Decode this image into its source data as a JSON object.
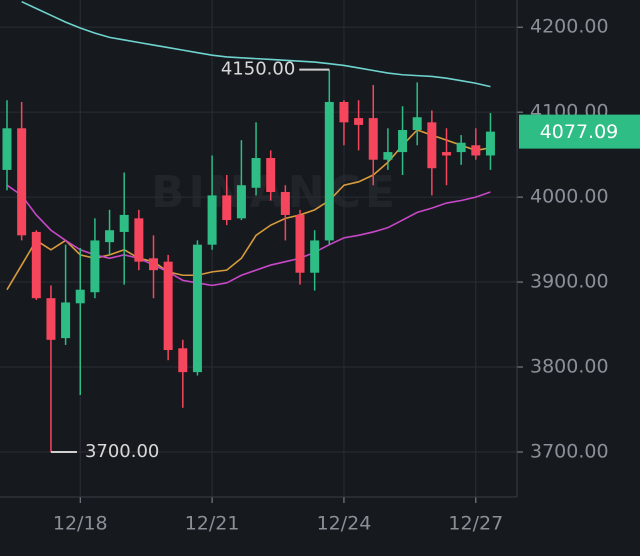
{
  "chart_data": {
    "type": "candlestick",
    "watermark": "BINANCE",
    "categories": [
      null,
      null,
      null,
      null,
      null,
      "12/18",
      null,
      null,
      null,
      null,
      null,
      null,
      null,
      null,
      "12/21",
      null,
      null,
      null,
      null,
      null,
      null,
      null,
      null,
      "12/24",
      null,
      null,
      null,
      null,
      null,
      null,
      null,
      null,
      "12/27",
      null
    ],
    "open": [
      4032,
      4081,
      3959,
      3881,
      3834,
      3875,
      3888,
      3947,
      3959,
      3975,
      3928,
      3924,
      3822,
      3794,
      3944,
      4002,
      3975,
      4011,
      4046,
      4006,
      3979,
      3911,
      3949,
      4112,
      4093,
      4093,
      4044,
      4053,
      4079,
      4088,
      4053,
      4053,
      4061,
      4049
    ],
    "high": [
      4114,
      4112,
      3961,
      3896,
      3944,
      3940,
      3975,
      3985,
      4029,
      3985,
      3955,
      3932,
      3832,
      3949,
      4049,
      4026,
      4067,
      4088,
      4055,
      4014,
      3985,
      3961,
      4150,
      4114,
      4114,
      4132,
      4081,
      4107,
      4135,
      4102,
      4081,
      4073,
      4081,
      4099
    ],
    "low": [
      4008,
      3949,
      3879,
      3700,
      3826,
      3767,
      3881,
      3932,
      3897,
      3914,
      3881,
      3808,
      3752,
      3790,
      3938,
      3967,
      3973,
      4002,
      3996,
      3949,
      3897,
      3890,
      3944,
      4061,
      4055,
      4014,
      4032,
      4026,
      4061,
      4002,
      4014,
      4038,
      4044,
      4032
    ],
    "close": [
      4081,
      3955,
      3881,
      3832,
      3876,
      3891,
      3949,
      3961,
      3979,
      3924,
      3914,
      3820,
      3794,
      3944,
      4002,
      3973,
      4014,
      4046,
      4006,
      3979,
      3911,
      3949,
      4112,
      4088,
      4085,
      4044,
      4053,
      4079,
      4094,
      4034,
      4049,
      4064,
      4049,
      4077.09
    ],
    "up_color": "#2ebd85",
    "down_color": "#f6465d",
    "lines": [
      {
        "color": "#6fd3cf",
        "values": [
          null,
          4230,
          4222,
          4214,
          4206,
          4199,
          4193,
          4188,
          4185,
          4182,
          4179,
          4176,
          4173,
          4170,
          4167,
          4165,
          4164,
          4163,
          4162,
          4161,
          4160,
          4159,
          4157,
          4155,
          4152,
          4149,
          4146,
          4144,
          4143,
          4142,
          4140,
          4137,
          4134,
          4130
        ]
      },
      {
        "color": "#d89a3c",
        "values": [
          3891,
          3920,
          3949,
          3938,
          3949,
          3932,
          3928,
          3932,
          3938,
          3928,
          3924,
          3912,
          3908,
          3908,
          3912,
          3914,
          3928,
          3955,
          3967,
          3975,
          3979,
          3985,
          3996,
          4014,
          4018,
          4026,
          4041,
          4061,
          4079,
          4073,
          4067,
          4061,
          4055,
          4058
        ]
      },
      {
        "color": "#c847c8",
        "values": [
          4014,
          4002,
          3979,
          3961,
          3949,
          3938,
          3932,
          3928,
          3932,
          3928,
          3920,
          3912,
          3902,
          3899,
          3896,
          3899,
          3908,
          3914,
          3920,
          3924,
          3928,
          3935,
          3944,
          3952,
          3955,
          3959,
          3964,
          3973,
          3982,
          3987,
          3993,
          3996,
          4000,
          4006
        ]
      }
    ],
    "ylim": [
      3647,
      4232
    ],
    "yticks": [
      {
        "value": 3700,
        "label": "3700.00"
      },
      {
        "value": 3800,
        "label": "3800.00"
      },
      {
        "value": 3900,
        "label": "3900.00"
      },
      {
        "value": 4000,
        "label": "4000.00"
      },
      {
        "value": 4100,
        "label": "4100.00"
      },
      {
        "value": 4200,
        "label": "4200.00"
      }
    ],
    "high_marker": {
      "value": 4150,
      "label": "4150.00"
    },
    "low_marker": {
      "value": 3700,
      "label": "3700.00"
    },
    "price_tag": {
      "value": 4077.09,
      "label": "4077.09"
    },
    "grid": true
  }
}
